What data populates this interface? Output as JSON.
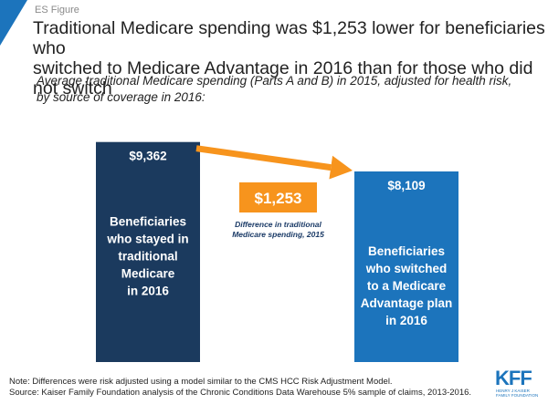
{
  "header": {
    "figure_label": "ES Figure",
    "title_line1": "Traditional Medicare spending was $1,253 lower for beneficiaries who",
    "title_line2": "switched to Medicare Advantage in 2016 than for those who did not switch",
    "subtitle_line1": "Average traditional Medicare spending (Parts A and B) in 2015, adjusted for health risk,",
    "subtitle_line2": "by source of coverage in 2016:"
  },
  "chart_data": {
    "type": "bar",
    "title": "",
    "ylim": [
      0,
      9700
    ],
    "grid": false,
    "bars": [
      {
        "value": 9362,
        "value_label": "$9,362",
        "label_lines": [
          "Beneficiaries",
          "who stayed in",
          "traditional",
          "Medicare",
          "in 2016"
        ],
        "color": "#1b3a5e"
      },
      {
        "value": 8109,
        "value_label": "$8,109",
        "label_lines": [
          "Beneficiaries",
          "who switched",
          "to a Medicare",
          "Advantage plan",
          "in 2016"
        ],
        "color": "#1c74bc"
      }
    ],
    "difference": {
      "value": 1253,
      "label": "$1,253",
      "caption_lines": [
        "Difference in traditional",
        "Medicare spending, 2015"
      ],
      "color": "#f7941d"
    }
  },
  "footer": {
    "note": "Note: Differences were risk adjusted using a model similar to the CMS HCC Risk Adjustment Model.",
    "source": "Source: Kaiser Family Foundation analysis of the Chronic Conditions Data Warehouse 5% sample of claims, 2013-2016.",
    "logo_letters": "KFF",
    "logo_sub_line1": "HENRY J KAISER",
    "logo_sub_line2": "FAMILY FOUNDATION"
  },
  "colors": {
    "corner_accent": "#1c74bc",
    "text": "#222222"
  }
}
